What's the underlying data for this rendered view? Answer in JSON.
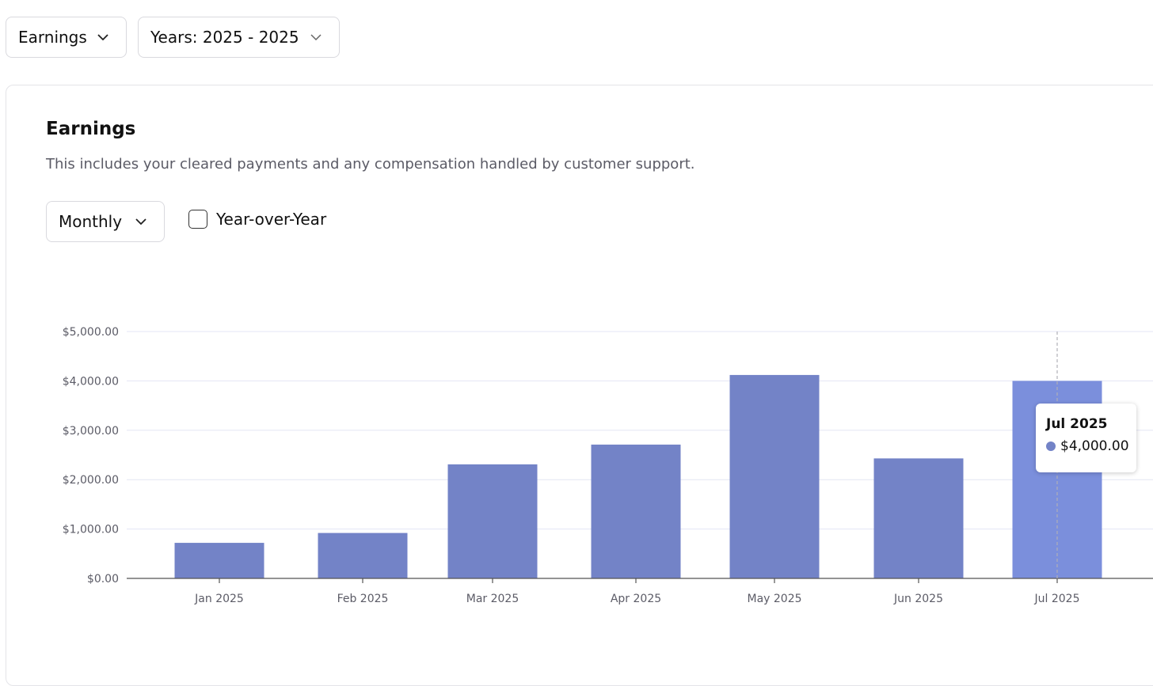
{
  "filters": {
    "metric": "Earnings",
    "years": "Years: 2025 - 2025"
  },
  "card": {
    "title": "Earnings",
    "subtitle": "This includes your cleared payments and any compensation handled by customer support.",
    "interval": "Monthly",
    "yoy_label": "Year-over-Year",
    "yoy_checked": false
  },
  "colors": {
    "bar": "#7383c7",
    "bar_hover": "#7b8fdc",
    "grid": "#e3e5f4",
    "axis": "#555555"
  },
  "icons": {
    "dropdown": "chevron-down-icon",
    "checkbox": "checkbox-icon"
  },
  "chart_data": {
    "type": "bar",
    "categories": [
      "Jan 2025",
      "Feb 2025",
      "Mar 2025",
      "Apr 2025",
      "May 2025",
      "Jun 2025",
      "Jul 2025"
    ],
    "values": [
      720,
      920,
      2310,
      2710,
      4120,
      2430,
      4000
    ],
    "y_ticks": [
      "$0.00",
      "$1,000.00",
      "$2,000.00",
      "$3,000.00",
      "$4,000.00",
      "$5,000.00"
    ],
    "ylim": [
      0,
      5000
    ],
    "grid": true,
    "highlighted_category": "Jul 2025",
    "tooltip": {
      "title": "Jul 2025",
      "value": "$4,000.00"
    }
  }
}
